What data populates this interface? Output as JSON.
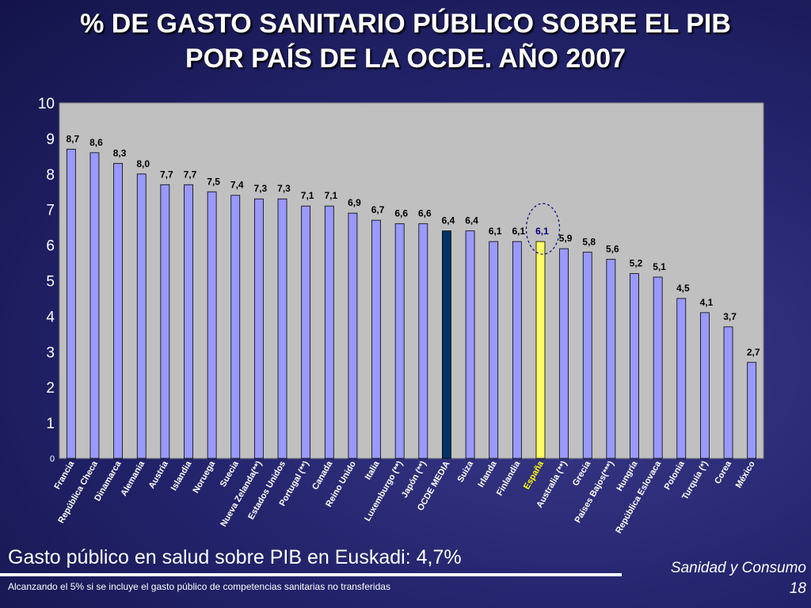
{
  "title_line1": "% DE GASTO SANITARIO PÚBLICO SOBRE EL PIB",
  "title_line2": "POR PAÍS DE LA OCDE. AÑO 2007",
  "bottom_text": "Gasto público en salud sobre PIB en Euskadi: 4,7%",
  "footnote": "Alcanzando el 5% si se incluye el gasto público de competencias sanitarias no transferidas",
  "section": "Sanidad y Consumo",
  "page_number": "18",
  "colors": {
    "bar": "#9999ff",
    "highlight_ocde": "#003366",
    "highlight_spain": "#ffff66",
    "spain_label": "#ffff00",
    "plot_bg": "#c0c0c0",
    "circle": "#000080"
  },
  "chart_data": {
    "type": "bar",
    "categories": [
      "Francia",
      "República Checa",
      "Dinamarca",
      "Alemania",
      "Austria",
      "Islandia",
      "Noruega",
      "Suecia",
      "Nueva Zelanda(**)",
      "Estados Unidos",
      "Portugal (**)",
      "Canada",
      "Reino Unido",
      "Italia",
      "Luxemburgo (**)",
      "Japón (**)",
      "OCDE MEDIA",
      "Suiza",
      "Irlanda",
      "Finlandia",
      "España",
      "Australia (**)",
      "Grecia",
      "Países Bajos(***)",
      "Hungría",
      "República Eslovaca",
      "Polonia",
      "Turquía (*)",
      "Corea",
      "México"
    ],
    "values": [
      8.7,
      8.6,
      8.3,
      8.0,
      7.7,
      7.7,
      7.5,
      7.4,
      7.3,
      7.3,
      7.1,
      7.1,
      6.9,
      6.7,
      6.6,
      6.6,
      6.4,
      6.4,
      6.1,
      6.1,
      6.1,
      5.9,
      5.8,
      5.6,
      5.2,
      5.1,
      4.5,
      4.1,
      3.7,
      2.7
    ],
    "value_labels": [
      "8,7",
      "8,6",
      "8,3",
      "8,0",
      "7,7",
      "7,7",
      "7,5",
      "7,4",
      "7,3",
      "7,3",
      "7,1",
      "7,1",
      "6,9",
      "6,7",
      "6,6",
      "6,6",
      "6,4",
      "6,4",
      "6,1",
      "6,1",
      "6,1",
      "5,9",
      "5,8",
      "5,6",
      "5,2",
      "5,1",
      "4,5",
      "4,1",
      "3,7",
      "2,7"
    ],
    "highlight_ocde_index": 16,
    "highlight_spain_index": 20,
    "yticks": [
      "0",
      "1",
      "2",
      "3",
      "4",
      "5",
      "6",
      "7",
      "8",
      "9",
      "10"
    ],
    "ylim": [
      0,
      10
    ],
    "grid": false,
    "legend": "none"
  }
}
